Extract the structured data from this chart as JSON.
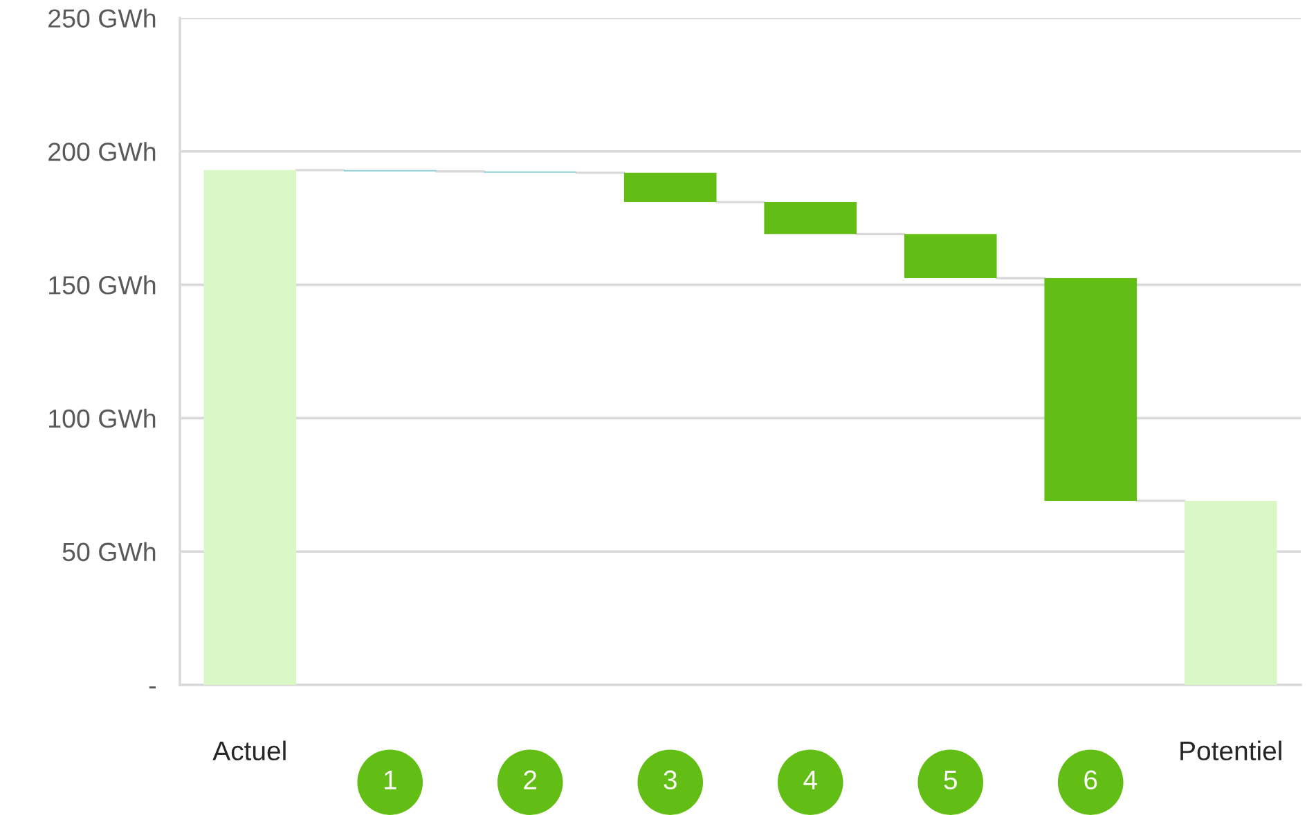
{
  "chart_data": {
    "type": "bar",
    "categories": [
      "Actuel",
      "1",
      "2",
      "3",
      "4",
      "5",
      "6",
      "Potentiel"
    ],
    "values": [
      193,
      -0.5,
      -0.5,
      -11,
      -12,
      -16.5,
      -83.5,
      69
    ],
    "base": [
      0,
      193,
      192.5,
      192,
      181,
      169,
      152.5,
      0
    ],
    "colors": [
      "#daf7c6",
      "#8ccfd6",
      "#8ccfd6",
      "#62be14",
      "#62be14",
      "#62be14",
      "#62be14",
      "#daf7c6"
    ],
    "ylim": [
      0,
      250
    ],
    "yticks": [
      {
        "value": 0,
        "label": "-"
      },
      {
        "value": 50,
        "label": "50 GWh"
      },
      {
        "value": 100,
        "label": "100 GWh"
      },
      {
        "value": 150,
        "label": "150 GWh"
      },
      {
        "value": 200,
        "label": "200 GWh"
      },
      {
        "value": 250,
        "label": "250 GWh"
      }
    ],
    "grid": "y"
  }
}
